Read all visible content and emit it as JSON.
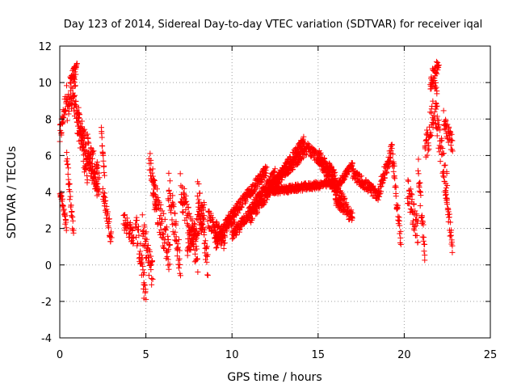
{
  "chart_data": {
    "type": "scatter",
    "title": "Day 123 of 2014, Sidereal Day-to-day VTEC variation (SDTVAR) for receiver iqal",
    "xlabel": "GPS time / hours",
    "ylabel": "SDTVAR / TECUs",
    "xlim": [
      0,
      25
    ],
    "ylim": [
      -4,
      12
    ],
    "xticks": [
      0,
      5,
      10,
      15,
      20,
      25
    ],
    "xtick_labels": [
      "0",
      "5",
      "10",
      "15",
      "20",
      "25"
    ],
    "yticks": [
      -4,
      -2,
      0,
      2,
      4,
      6,
      8,
      10,
      12
    ],
    "ytick_labels": [
      "-4",
      "-2",
      "0",
      "2",
      "4",
      "6",
      "8",
      "10",
      "12"
    ],
    "grid": true,
    "marker": "+",
    "marker_color": "#ff0000",
    "series": [
      {
        "name": "SDTVAR",
        "segments": [
          {
            "id": "s01",
            "x0": 0.0,
            "x1": 0.4,
            "y0": 7.0,
            "y1": 9.3,
            "noise": 0.6
          },
          {
            "id": "s02",
            "x0": 0.0,
            "x1": 0.4,
            "y0": 4.2,
            "y1": 2.0,
            "noise": 0.3
          },
          {
            "id": "s03",
            "x0": 0.4,
            "x1": 0.9,
            "y0": 8.5,
            "y1": 9.8,
            "noise": 0.7
          },
          {
            "id": "s04",
            "x0": 0.6,
            "x1": 1.0,
            "y0": 10.2,
            "y1": 10.8,
            "noise": 0.3
          },
          {
            "id": "s05",
            "x0": 0.4,
            "x1": 0.8,
            "y0": 6.0,
            "y1": 1.6,
            "noise": 0.4
          },
          {
            "id": "s06",
            "x0": 0.8,
            "x1": 1.4,
            "y0": 9.0,
            "y1": 7.0,
            "noise": 0.6
          },
          {
            "id": "s07",
            "x0": 1.0,
            "x1": 1.6,
            "y0": 8.0,
            "y1": 5.0,
            "noise": 0.7
          },
          {
            "id": "s08",
            "x0": 1.4,
            "x1": 2.3,
            "y0": 7.0,
            "y1": 4.5,
            "noise": 0.8
          },
          {
            "id": "s09",
            "x0": 1.6,
            "x1": 2.2,
            "y0": 5.8,
            "y1": 4.2,
            "noise": 0.5
          },
          {
            "id": "s10",
            "x0": 2.4,
            "x1": 2.6,
            "y0": 7.4,
            "y1": 5.0,
            "noise": 0.2
          },
          {
            "id": "s11",
            "x0": 2.5,
            "x1": 3.0,
            "y0": 4.0,
            "y1": 1.5,
            "noise": 0.5
          },
          {
            "id": "s12",
            "x0": 3.7,
            "x1": 4.3,
            "y0": 2.5,
            "y1": 1.5,
            "noise": 0.5
          },
          {
            "id": "s13",
            "x0": 4.4,
            "x1": 5.0,
            "y0": 2.5,
            "y1": -1.8,
            "noise": 0.8
          },
          {
            "id": "s14",
            "x0": 4.8,
            "x1": 5.4,
            "y0": 2.0,
            "y1": -0.6,
            "noise": 0.9
          },
          {
            "id": "s15",
            "x0": 5.2,
            "x1": 5.6,
            "y0": 5.8,
            "y1": 3.5,
            "noise": 0.6
          },
          {
            "id": "s16",
            "x0": 5.4,
            "x1": 6.4,
            "y0": 4.2,
            "y1": 0.5,
            "noise": 1.0
          },
          {
            "id": "s17",
            "x0": 6.3,
            "x1": 7.0,
            "y0": 4.5,
            "y1": 0.0,
            "noise": 0.9
          },
          {
            "id": "s18",
            "x0": 7.0,
            "x1": 8.0,
            "y0": 4.3,
            "y1": 0.5,
            "noise": 0.9
          },
          {
            "id": "s19",
            "x0": 7.4,
            "x1": 8.4,
            "y0": 1.0,
            "y1": 3.0,
            "noise": 0.6
          },
          {
            "id": "s20",
            "x0": 8.0,
            "x1": 8.6,
            "y0": 4.2,
            "y1": 0.0,
            "noise": 0.8
          },
          {
            "id": "s21",
            "x0": 8.6,
            "x1": 9.6,
            "y0": 2.6,
            "y1": 1.2,
            "noise": 0.5
          },
          {
            "id": "s22",
            "x0": 9.0,
            "x1": 10.2,
            "y0": 1.2,
            "y1": 2.8,
            "noise": 0.4
          },
          {
            "id": "s23",
            "x0": 9.6,
            "x1": 12.0,
            "y0": 2.2,
            "y1": 5.2,
            "noise": 0.3
          },
          {
            "id": "s24",
            "x0": 10.0,
            "x1": 12.5,
            "y0": 1.5,
            "y1": 5.0,
            "noise": 0.3
          },
          {
            "id": "s25",
            "x0": 11.0,
            "x1": 14.2,
            "y0": 2.5,
            "y1": 6.8,
            "noise": 0.3
          },
          {
            "id": "s26",
            "x0": 12.0,
            "x1": 16.0,
            "y0": 4.0,
            "y1": 4.5,
            "noise": 0.2
          },
          {
            "id": "s27",
            "x0": 12.5,
            "x1": 14.5,
            "y0": 4.5,
            "y1": 6.5,
            "noise": 0.3
          },
          {
            "id": "s28",
            "x0": 14.5,
            "x1": 16.0,
            "y0": 6.3,
            "y1": 5.0,
            "noise": 0.3
          },
          {
            "id": "s29",
            "x0": 15.0,
            "x1": 17.0,
            "y0": 6.0,
            "y1": 2.5,
            "noise": 0.4
          },
          {
            "id": "s30",
            "x0": 16.0,
            "x1": 16.5,
            "y0": 3.5,
            "y1": 3.0,
            "noise": 0.2
          },
          {
            "id": "s31",
            "x0": 16.0,
            "x1": 17.0,
            "y0": 4.2,
            "y1": 5.5,
            "noise": 0.2
          },
          {
            "id": "s32",
            "x0": 17.0,
            "x1": 18.5,
            "y0": 5.0,
            "y1": 3.8,
            "noise": 0.3
          },
          {
            "id": "s33",
            "x0": 18.5,
            "x1": 19.3,
            "y0": 4.0,
            "y1": 6.3,
            "noise": 0.4
          },
          {
            "id": "s34",
            "x0": 19.3,
            "x1": 19.8,
            "y0": 6.2,
            "y1": 1.2,
            "noise": 0.6
          },
          {
            "id": "s35",
            "x0": 20.2,
            "x1": 20.8,
            "y0": 4.0,
            "y1": 1.8,
            "noise": 0.8
          },
          {
            "id": "s36",
            "x0": 20.8,
            "x1": 21.2,
            "y0": 5.5,
            "y1": 0.4,
            "noise": 0.6
          },
          {
            "id": "s37",
            "x0": 21.2,
            "x1": 21.9,
            "y0": 6.0,
            "y1": 9.5,
            "noise": 0.9
          },
          {
            "id": "s38",
            "x0": 21.5,
            "x1": 22.0,
            "y0": 10.0,
            "y1": 11.0,
            "noise": 0.5
          },
          {
            "id": "s39",
            "x0": 21.8,
            "x1": 22.5,
            "y0": 8.5,
            "y1": 4.0,
            "noise": 0.9
          },
          {
            "id": "s40",
            "x0": 22.3,
            "x1": 22.8,
            "y0": 8.0,
            "y1": 6.5,
            "noise": 0.5
          },
          {
            "id": "s41",
            "x0": 22.4,
            "x1": 22.8,
            "y0": 4.0,
            "y1": 1.0,
            "noise": 0.5
          }
        ]
      }
    ]
  }
}
